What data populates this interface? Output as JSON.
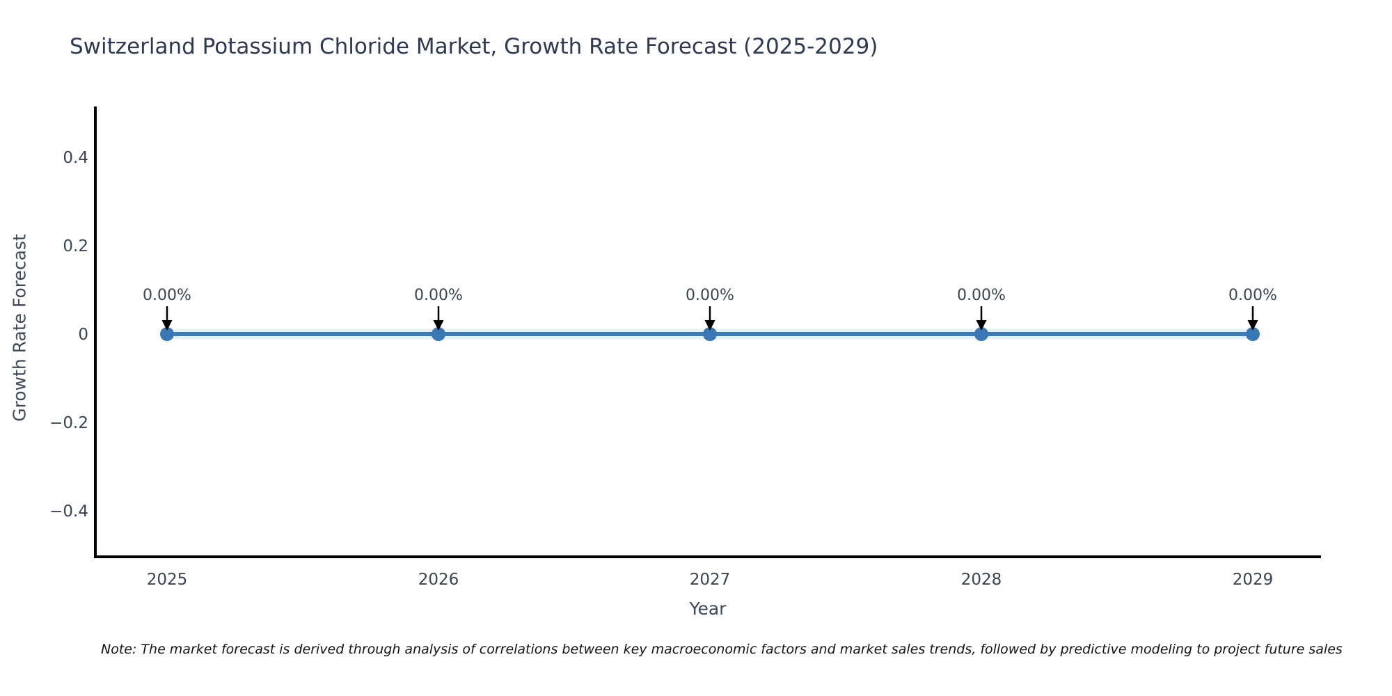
{
  "chart_data": {
    "type": "line",
    "title": "Switzerland Potassium Chloride Market, Growth Rate Forecast (2025-2029)",
    "xlabel": "Year",
    "ylabel": "Growth Rate Forecast",
    "x": [
      2025,
      2026,
      2027,
      2028,
      2029
    ],
    "xticklabels": [
      "2025",
      "2026",
      "2027",
      "2028",
      "2029"
    ],
    "series": [
      {
        "name": "Growth Rate Forecast",
        "values": [
          0,
          0,
          0,
          0,
          0
        ]
      }
    ],
    "point_labels": [
      "0.00%",
      "0.00%",
      "0.00%",
      "0.00%",
      "0.00%"
    ],
    "yticks": {
      "values": [
        0.4,
        0.2,
        0,
        -0.2,
        -0.4
      ],
      "labels": [
        "0.4",
        "0.2",
        "0",
        "−0.2",
        "−0.4"
      ]
    },
    "ylim": [
      -0.51,
      0.51
    ],
    "grid": false,
    "legend": "none",
    "annotation_style": "down-arrow",
    "line_color": "#3e7cb8",
    "marker_color": "#3a77b5",
    "halo_color": "#cce4f6",
    "arrow_color": "#000000",
    "spine_color": "#000000"
  },
  "note": {
    "text": "Note: The market forecast is derived through analysis of correlations between key macroeconomic factors and market sales trends, followed by predictive modeling to project future sales"
  },
  "colors": {
    "title": "#2e3a52",
    "tick_label": "#3a4453",
    "axis_label": "#3e4a5c",
    "annotation_text": "#3a4453",
    "note_text": "#141414",
    "background": "#ffffff"
  }
}
